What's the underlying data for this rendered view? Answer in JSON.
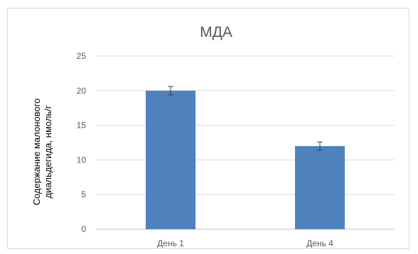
{
  "chart_data": {
    "type": "bar",
    "title": "МДА",
    "xlabel": "",
    "ylabel_lines": [
      "Содержание малонового",
      "диальдегида, нмоль/г"
    ],
    "categories": [
      "День 1",
      "День 4"
    ],
    "series": [
      {
        "values": [
          20.0,
          12.0
        ],
        "error": [
          0.6,
          0.6
        ],
        "color": "#4f81bd"
      }
    ],
    "ylim": [
      0,
      25
    ],
    "yticks": [
      0,
      5,
      10,
      15,
      20,
      25
    ],
    "grid": true,
    "legend": "none"
  },
  "style": {
    "grid_color": "#d9d9d9",
    "axis_color": "#bfbfbf",
    "error_color": "#404040"
  }
}
